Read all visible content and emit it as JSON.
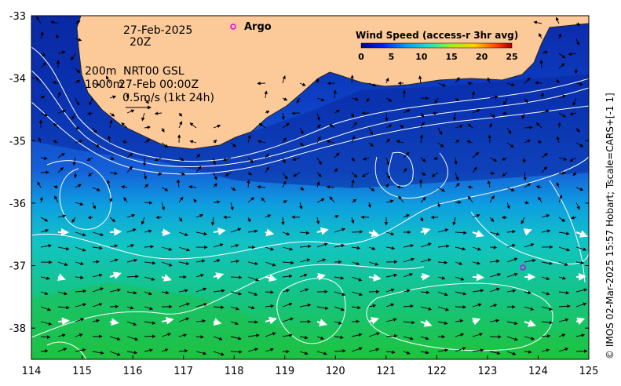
{
  "map": {
    "region_lon": [
      114,
      125
    ],
    "region_lat": [
      -38.5,
      -33
    ],
    "x_ticks": [
      "114",
      "115",
      "116",
      "117",
      "118",
      "119",
      "120",
      "121",
      "122",
      "123",
      "124",
      "125"
    ],
    "y_ticks": [
      "-33",
      "-34",
      "-35",
      "-36",
      "-37",
      "-38"
    ],
    "land_color": "#fcc999",
    "ocean_low_color": "#0a2fb0",
    "ocean_high_color": "#1ec83a"
  },
  "annotation": {
    "date": "27-Feb-2025",
    "time": "20Z",
    "depth_200": "200m",
    "product": "NRT00 GSL",
    "depth_1000": "1000m",
    "ref_time": "27-Feb 00:00Z",
    "scale": "0.5m/s (1kt 24h)"
  },
  "legend": {
    "title": "Wind Speed (access-r 3hr avg)",
    "ticks": [
      "0",
      "5",
      "10",
      "15",
      "20",
      "25"
    ]
  },
  "argo": {
    "label": "Argo",
    "marker_color": "#e000e0",
    "floats": [
      {
        "lon": 123.7,
        "lat": -37.03
      }
    ]
  },
  "credit": "© IMOS 02-Mar-2025 15:57 Hobart; Tscale=CARS+[-1 1]"
}
